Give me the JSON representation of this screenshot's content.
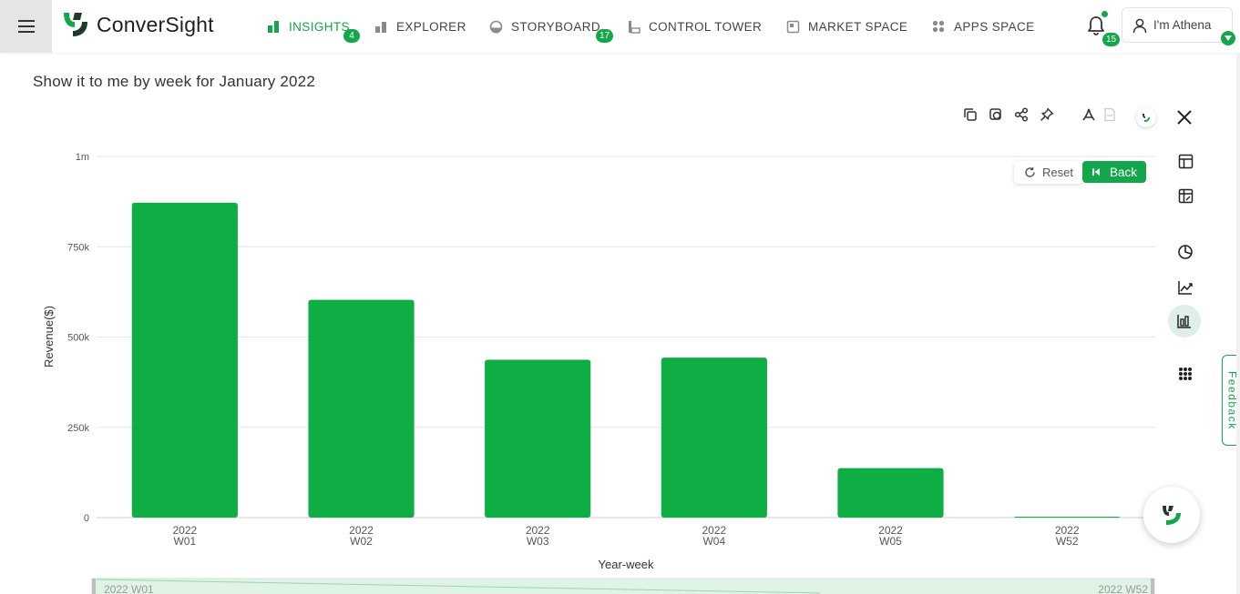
{
  "app": {
    "brand": "ConverSight",
    "accent": "#14a64a"
  },
  "nav": {
    "items": [
      {
        "label": "INSIGHTS",
        "icon": "bar-icon",
        "badge": "4",
        "active": true
      },
      {
        "label": "EXPLORER",
        "icon": "explorer-icon",
        "badge": null
      },
      {
        "label": "STORYBOARD",
        "icon": "storyboard-icon",
        "badge": "17"
      },
      {
        "label": "CONTROL TOWER",
        "icon": "tower-icon",
        "badge": null
      },
      {
        "label": "MARKET SPACE",
        "icon": "market-icon",
        "badge": null
      },
      {
        "label": "APPS SPACE",
        "icon": "apps-icon",
        "badge": null
      }
    ],
    "notifications_count": "15",
    "user_label": "I'm Athena"
  },
  "query": {
    "title": "Show it to me by week for January 2022"
  },
  "controls": {
    "reset_label": "Reset",
    "back_label": "Back",
    "feedback_label": "Feedback"
  },
  "chart_data": {
    "type": "bar",
    "title": "",
    "xlabel": "Year-week",
    "ylabel": "Revenue($)",
    "categories": [
      [
        "2022",
        "W01"
      ],
      [
        "2022",
        "W02"
      ],
      [
        "2022",
        "W03"
      ],
      [
        "2022",
        "W04"
      ],
      [
        "2022",
        "W05"
      ],
      [
        "2022",
        "W52"
      ]
    ],
    "values": [
      872000,
      603000,
      437000,
      443000,
      137000,
      1500
    ],
    "ylim": [
      0,
      1000000
    ],
    "yticks": [
      {
        "value": 0,
        "label": "0"
      },
      {
        "value": 250000,
        "label": "250k"
      },
      {
        "value": 500000,
        "label": "500k"
      },
      {
        "value": 750000,
        "label": "750k"
      },
      {
        "value": 1000000,
        "label": "1m"
      }
    ],
    "grid": true,
    "bar_color": "#0fae45",
    "zoom_range_start": "2022 W01",
    "zoom_range_end": "2022 W52"
  }
}
